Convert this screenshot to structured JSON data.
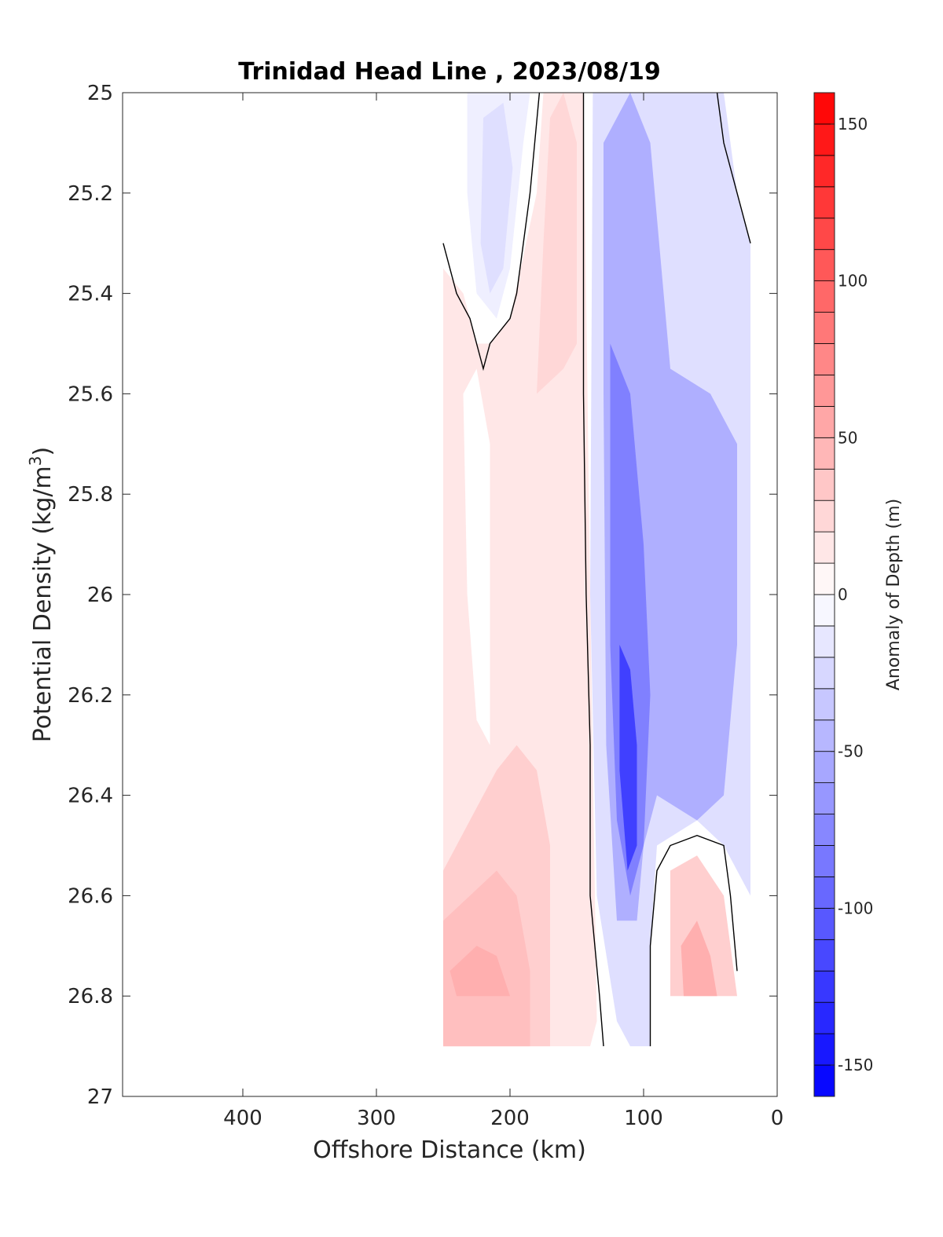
{
  "chart_data": {
    "type": "heatmap",
    "title": "Trinidad Head Line , 2023/08/19",
    "xlabel": "Offshore Distance (km)",
    "ylabel_prefix": "Potential Density (kg/m",
    "ylabel_sup": "3",
    "ylabel_suffix": ")",
    "xlim": [
      490,
      0
    ],
    "ylim": [
      25,
      27
    ],
    "x_reversed": true,
    "y_reversed": true,
    "x_ticks": [
      400,
      300,
      200,
      100,
      0
    ],
    "x_tick_labels": [
      "400",
      "300",
      "200",
      "100",
      "0"
    ],
    "y_ticks": [
      25,
      25.2,
      25.4,
      25.6,
      25.8,
      26,
      26.2,
      26.4,
      26.6,
      26.8,
      27
    ],
    "y_tick_labels": [
      "25",
      "25.2",
      "25.4",
      "25.6",
      "25.8",
      "26",
      "26.2",
      "26.4",
      "26.6",
      "26.8",
      "27"
    ],
    "colorbar": {
      "label": "Anomaly of Depth (m)",
      "range": [
        -160,
        160
      ],
      "step": 10,
      "ticks": [
        150,
        100,
        50,
        0,
        -50,
        -100,
        -150
      ],
      "tick_labels": [
        "150",
        "100",
        "50",
        "0",
        "-50",
        "-100",
        "-150"
      ],
      "low_color": "#0000ff",
      "mid_color": "#ffffff",
      "high_color": "#ff0000"
    },
    "data_extent": {
      "x": [
        250,
        20
      ],
      "y": [
        25,
        26.9
      ]
    },
    "regions": [
      {
        "label": "positive anomaly band (inshore-offshore)",
        "value": 15,
        "points": [
          [
            250,
            26.9
          ],
          [
            250,
            25.35
          ],
          [
            235,
            25.4
          ],
          [
            225,
            25.5
          ],
          [
            215,
            25.5
          ],
          [
            200,
            25.45
          ],
          [
            180,
            25.2
          ],
          [
            175,
            25
          ],
          [
            145,
            25
          ],
          [
            140,
            26
          ],
          [
            135,
            26.85
          ],
          [
            140,
            26.9
          ]
        ]
      },
      {
        "label": "positive anomaly core 160-175 km",
        "value": 25,
        "points": [
          [
            180,
            25.6
          ],
          [
            175,
            25.3
          ],
          [
            170,
            25.05
          ],
          [
            160,
            25
          ],
          [
            150,
            25.1
          ],
          [
            150,
            25.5
          ],
          [
            160,
            25.55
          ]
        ]
      },
      {
        "label": "positive anomaly deep offshore",
        "value": 30,
        "points": [
          [
            250,
            26.55
          ],
          [
            230,
            26.45
          ],
          [
            210,
            26.35
          ],
          [
            195,
            26.3
          ],
          [
            180,
            26.35
          ],
          [
            170,
            26.5
          ],
          [
            170,
            26.9
          ],
          [
            250,
            26.9
          ]
        ]
      },
      {
        "label": "positive anomaly deep core",
        "value": 40,
        "points": [
          [
            250,
            26.65
          ],
          [
            230,
            26.6
          ],
          [
            210,
            26.55
          ],
          [
            195,
            26.6
          ],
          [
            185,
            26.75
          ],
          [
            185,
            26.9
          ],
          [
            250,
            26.9
          ]
        ]
      },
      {
        "label": "positive anomaly deep max",
        "value": 50,
        "points": [
          [
            245,
            26.75
          ],
          [
            225,
            26.7
          ],
          [
            210,
            26.72
          ],
          [
            200,
            26.8
          ],
          [
            200,
            26.8
          ],
          [
            240,
            26.8
          ]
        ]
      },
      {
        "label": "near-zero pocket offshore",
        "value": 0,
        "points": [
          [
            235,
            25.6
          ],
          [
            225,
            25.55
          ],
          [
            215,
            25.7
          ],
          [
            215,
            26.3
          ],
          [
            225,
            26.25
          ],
          [
            232,
            26.0
          ]
        ]
      },
      {
        "label": "weak negative offshore surface",
        "value": -10,
        "points": [
          [
            232,
            25
          ],
          [
            232,
            25.2
          ],
          [
            225,
            25.4
          ],
          [
            210,
            25.45
          ],
          [
            200,
            25.35
          ],
          [
            190,
            25.1
          ],
          [
            185,
            25
          ]
        ]
      },
      {
        "label": "negative offshore surface core",
        "value": -20,
        "points": [
          [
            220,
            25.05
          ],
          [
            222,
            25.3
          ],
          [
            215,
            25.4
          ],
          [
            205,
            25.35
          ],
          [
            198,
            25.15
          ],
          [
            205,
            25.02
          ]
        ]
      },
      {
        "label": "negative band",
        "value": -20,
        "points": [
          [
            138,
            25
          ],
          [
            140,
            26
          ],
          [
            135,
            26.6
          ],
          [
            120,
            26.85
          ],
          [
            110,
            26.9
          ],
          [
            95,
            26.9
          ],
          [
            95,
            26.7
          ],
          [
            90,
            26.5
          ],
          [
            60,
            26.45
          ],
          [
            40,
            26.5
          ],
          [
            20,
            26.6
          ],
          [
            20,
            25.3
          ],
          [
            30,
            25.2
          ],
          [
            40,
            25
          ],
          [
            90,
            25
          ],
          [
            100,
            25
          ]
        ]
      },
      {
        "label": "negative core",
        "value": -50,
        "points": [
          [
            130,
            25.1
          ],
          [
            130,
            25.6
          ],
          [
            128,
            26.3
          ],
          [
            120,
            26.65
          ],
          [
            105,
            26.65
          ],
          [
            100,
            26.5
          ],
          [
            90,
            26.4
          ],
          [
            60,
            26.45
          ],
          [
            40,
            26.4
          ],
          [
            30,
            26.1
          ],
          [
            30,
            25.7
          ],
          [
            50,
            25.6
          ],
          [
            80,
            25.55
          ],
          [
            95,
            25.1
          ],
          [
            110,
            25
          ]
        ]
      },
      {
        "label": "negative strong core",
        "value": -80,
        "points": [
          [
            125,
            25.5
          ],
          [
            125,
            26.1
          ],
          [
            120,
            26.45
          ],
          [
            110,
            26.6
          ],
          [
            100,
            26.5
          ],
          [
            95,
            26.2
          ],
          [
            100,
            25.9
          ],
          [
            110,
            25.6
          ]
        ]
      },
      {
        "label": "negative max core",
        "value": -120,
        "points": [
          [
            118,
            26.1
          ],
          [
            118,
            26.35
          ],
          [
            112,
            26.55
          ],
          [
            105,
            26.5
          ],
          [
            105,
            26.3
          ],
          [
            110,
            26.15
          ]
        ]
      },
      {
        "label": "positive anomaly inshore deep",
        "value": 30,
        "points": [
          [
            80,
            26.55
          ],
          [
            60,
            26.52
          ],
          [
            40,
            26.6
          ],
          [
            30,
            26.8
          ],
          [
            60,
            26.8
          ],
          [
            80,
            26.8
          ]
        ]
      },
      {
        "label": "positive anomaly inshore deep max",
        "value": 50,
        "points": [
          [
            72,
            26.7
          ],
          [
            60,
            26.65
          ],
          [
            50,
            26.72
          ],
          [
            45,
            26.8
          ],
          [
            70,
            26.8
          ]
        ]
      }
    ],
    "zero_contours": [
      [
        [
          250,
          25.3
        ],
        [
          240,
          25.4
        ],
        [
          230,
          25.45
        ],
        [
          220,
          25.55
        ],
        [
          215,
          25.5
        ],
        [
          200,
          25.45
        ],
        [
          195,
          25.4
        ],
        [
          185,
          25.2
        ],
        [
          178,
          25
        ]
      ],
      [
        [
          145,
          25
        ],
        [
          145,
          25.6
        ],
        [
          143,
          26
        ],
        [
          140,
          26.3
        ],
        [
          140,
          26.6
        ],
        [
          133,
          26.8
        ],
        [
          130,
          26.9
        ]
      ],
      [
        [
          95,
          26.9
        ],
        [
          95,
          26.7
        ],
        [
          90,
          26.55
        ],
        [
          80,
          26.5
        ],
        [
          60,
          26.48
        ],
        [
          40,
          26.5
        ],
        [
          35,
          26.6
        ],
        [
          30,
          26.75
        ]
      ],
      [
        [
          45,
          25
        ],
        [
          40,
          25.1
        ],
        [
          30,
          25.2
        ],
        [
          20,
          25.3
        ]
      ]
    ]
  }
}
